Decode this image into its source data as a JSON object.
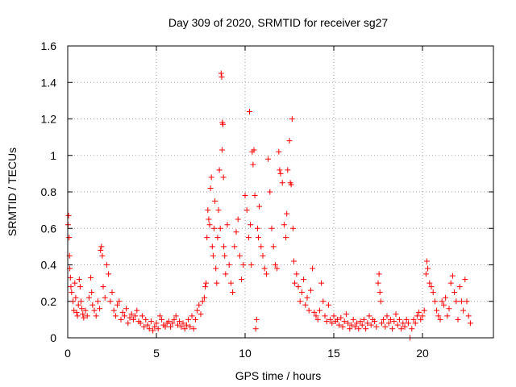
{
  "chart_data": {
    "type": "scatter",
    "title": "Day 309 of 2020, SRMTID for receiver sg27",
    "xlabel": "GPS time / hours",
    "ylabel": "SRMTID / TECUs",
    "xlim": [
      0,
      24
    ],
    "ylim": [
      0,
      1.6
    ],
    "xticks": [
      0,
      5,
      10,
      15,
      20
    ],
    "xtick_labels": [
      "0",
      "5",
      "10",
      "15",
      "20"
    ],
    "yticks": [
      0,
      0.2,
      0.4,
      0.6,
      0.8,
      1.0,
      1.2,
      1.4,
      1.6
    ],
    "ytick_labels": [
      "0",
      "0.2",
      "0.4",
      "0.6",
      "0.8",
      "1",
      "1.2",
      "1.4",
      "1.6"
    ],
    "grid": true,
    "marker": "+",
    "color": "#ff0000",
    "series": [
      {
        "name": "SRMTID",
        "points": [
          [
            0.02,
            0.62
          ],
          [
            0.05,
            0.67
          ],
          [
            0.08,
            0.55
          ],
          [
            0.1,
            0.45
          ],
          [
            0.12,
            0.38
          ],
          [
            0.15,
            0.33
          ],
          [
            0.18,
            0.28
          ],
          [
            0.22,
            0.25
          ],
          [
            0.3,
            0.2
          ],
          [
            0.35,
            0.15
          ],
          [
            0.4,
            0.3
          ],
          [
            0.45,
            0.22
          ],
          [
            0.5,
            0.14
          ],
          [
            0.55,
            0.12
          ],
          [
            0.6,
            0.18
          ],
          [
            0.65,
            0.32
          ],
          [
            0.7,
            0.28
          ],
          [
            0.75,
            0.2
          ],
          [
            0.8,
            0.16
          ],
          [
            0.85,
            0.13
          ],
          [
            0.9,
            0.11
          ],
          [
            1.0,
            0.15
          ],
          [
            1.1,
            0.12
          ],
          [
            1.2,
            0.22
          ],
          [
            1.3,
            0.33
          ],
          [
            1.35,
            0.25
          ],
          [
            1.4,
            0.18
          ],
          [
            1.5,
            0.15
          ],
          [
            1.6,
            0.12
          ],
          [
            1.7,
            0.2
          ],
          [
            1.8,
            0.16
          ],
          [
            1.85,
            0.48
          ],
          [
            1.9,
            0.5
          ],
          [
            1.95,
            0.45
          ],
          [
            2.0,
            0.28
          ],
          [
            2.1,
            0.22
          ],
          [
            2.2,
            0.4
          ],
          [
            2.3,
            0.35
          ],
          [
            2.4,
            0.2
          ],
          [
            2.5,
            0.25
          ],
          [
            2.6,
            0.15
          ],
          [
            2.7,
            0.12
          ],
          [
            2.8,
            0.18
          ],
          [
            2.9,
            0.2
          ],
          [
            3.0,
            0.1
          ],
          [
            3.1,
            0.14
          ],
          [
            3.2,
            0.12
          ],
          [
            3.3,
            0.16
          ],
          [
            3.4,
            0.08
          ],
          [
            3.5,
            0.11
          ],
          [
            3.6,
            0.13
          ],
          [
            3.7,
            0.1
          ],
          [
            3.8,
            0.12
          ],
          [
            3.9,
            0.15
          ],
          [
            4.0,
            0.09
          ],
          [
            4.1,
            0.08
          ],
          [
            4.2,
            0.12
          ],
          [
            4.3,
            0.06
          ],
          [
            4.4,
            0.1
          ],
          [
            4.5,
            0.07
          ],
          [
            4.6,
            0.05
          ],
          [
            4.7,
            0.09
          ],
          [
            4.8,
            0.04
          ],
          [
            4.9,
            0.06
          ],
          [
            5.0,
            0.08
          ],
          [
            5.1,
            0.05
          ],
          [
            5.2,
            0.12
          ],
          [
            5.3,
            0.1
          ],
          [
            5.4,
            0.07
          ],
          [
            5.5,
            0.06
          ],
          [
            5.6,
            0.08
          ],
          [
            5.7,
            0.09
          ],
          [
            5.8,
            0.06
          ],
          [
            5.9,
            0.08
          ],
          [
            6.0,
            0.1
          ],
          [
            6.1,
            0.12
          ],
          [
            6.2,
            0.07
          ],
          [
            6.3,
            0.09
          ],
          [
            6.4,
            0.06
          ],
          [
            6.5,
            0.08
          ],
          [
            6.6,
            0.05
          ],
          [
            6.7,
            0.07
          ],
          [
            6.8,
            0.1
          ],
          [
            6.9,
            0.06
          ],
          [
            7.0,
            0.12
          ],
          [
            7.1,
            0.05
          ],
          [
            7.2,
            0.1
          ],
          [
            7.3,
            0.15
          ],
          [
            7.4,
            0.18
          ],
          [
            7.5,
            0.13
          ],
          [
            7.6,
            0.2
          ],
          [
            7.7,
            0.22
          ],
          [
            7.75,
            0.28
          ],
          [
            7.8,
            0.3
          ],
          [
            7.85,
            0.55
          ],
          [
            7.9,
            0.7
          ],
          [
            7.95,
            0.65
          ],
          [
            8.0,
            0.62
          ],
          [
            8.05,
            0.82
          ],
          [
            8.1,
            0.88
          ],
          [
            8.15,
            0.5
          ],
          [
            8.2,
            0.45
          ],
          [
            8.25,
            0.6
          ],
          [
            8.3,
            0.75
          ],
          [
            8.35,
            0.38
          ],
          [
            8.4,
            0.3
          ],
          [
            8.45,
            0.55
          ],
          [
            8.5,
            0.7
          ],
          [
            8.55,
            0.92
          ],
          [
            8.6,
            0.6
          ],
          [
            8.65,
            1.45
          ],
          [
            8.68,
            1.43
          ],
          [
            8.7,
            1.03
          ],
          [
            8.72,
            1.18
          ],
          [
            8.75,
            1.17
          ],
          [
            8.78,
            0.88
          ],
          [
            8.8,
            0.5
          ],
          [
            8.85,
            0.45
          ],
          [
            8.9,
            0.35
          ],
          [
            9.0,
            0.62
          ],
          [
            9.1,
            0.4
          ],
          [
            9.2,
            0.3
          ],
          [
            9.3,
            0.25
          ],
          [
            9.4,
            0.5
          ],
          [
            9.5,
            0.58
          ],
          [
            9.6,
            0.65
          ],
          [
            9.7,
            0.45
          ],
          [
            9.8,
            0.32
          ],
          [
            9.9,
            0.4
          ],
          [
            10.0,
            0.78
          ],
          [
            10.1,
            0.7
          ],
          [
            10.2,
            0.55
          ],
          [
            10.25,
            1.24
          ],
          [
            10.3,
            0.62
          ],
          [
            10.35,
            0.4
          ],
          [
            10.4,
            1.02
          ],
          [
            10.45,
            0.95
          ],
          [
            10.5,
            1.03
          ],
          [
            10.55,
            0.78
          ],
          [
            10.6,
            0.05
          ],
          [
            10.65,
            0.1
          ],
          [
            10.7,
            0.6
          ],
          [
            10.75,
            0.55
          ],
          [
            10.8,
            0.72
          ],
          [
            10.9,
            0.5
          ],
          [
            11.0,
            0.45
          ],
          [
            11.1,
            0.38
          ],
          [
            11.2,
            0.35
          ],
          [
            11.3,
            0.98
          ],
          [
            11.4,
            0.8
          ],
          [
            11.5,
            0.6
          ],
          [
            11.6,
            0.5
          ],
          [
            11.7,
            0.4
          ],
          [
            11.8,
            0.38
          ],
          [
            11.9,
            1.02
          ],
          [
            11.95,
            0.92
          ],
          [
            12.0,
            0.9
          ],
          [
            12.1,
            0.85
          ],
          [
            12.2,
            0.62
          ],
          [
            12.3,
            0.55
          ],
          [
            12.35,
            0.68
          ],
          [
            12.4,
            0.92
          ],
          [
            12.5,
            1.08
          ],
          [
            12.55,
            0.85
          ],
          [
            12.6,
            0.84
          ],
          [
            12.65,
            1.2
          ],
          [
            12.7,
            0.6
          ],
          [
            12.75,
            0.42
          ],
          [
            12.8,
            0.3
          ],
          [
            12.9,
            0.35
          ],
          [
            13.0,
            0.28
          ],
          [
            13.1,
            0.2
          ],
          [
            13.2,
            0.25
          ],
          [
            13.3,
            0.32
          ],
          [
            13.4,
            0.18
          ],
          [
            13.5,
            0.22
          ],
          [
            13.6,
            0.15
          ],
          [
            13.7,
            0.26
          ],
          [
            13.8,
            0.38
          ],
          [
            13.9,
            0.14
          ],
          [
            14.0,
            0.12
          ],
          [
            14.1,
            0.1
          ],
          [
            14.2,
            0.15
          ],
          [
            14.3,
            0.3
          ],
          [
            14.4,
            0.2
          ],
          [
            14.5,
            0.12
          ],
          [
            14.6,
            0.09
          ],
          [
            14.7,
            0.18
          ],
          [
            14.8,
            0.1
          ],
          [
            14.9,
            0.08
          ],
          [
            15.0,
            0.12
          ],
          [
            15.1,
            0.09
          ],
          [
            15.2,
            0.1
          ],
          [
            15.3,
            0.07
          ],
          [
            15.4,
            0.11
          ],
          [
            15.5,
            0.06
          ],
          [
            15.6,
            0.09
          ],
          [
            15.7,
            0.13
          ],
          [
            15.8,
            0.08
          ],
          [
            15.9,
            0.05
          ],
          [
            16.0,
            0.07
          ],
          [
            16.1,
            0.1
          ],
          [
            16.2,
            0.06
          ],
          [
            16.3,
            0.08
          ],
          [
            16.4,
            0.05
          ],
          [
            16.5,
            0.09
          ],
          [
            16.6,
            0.07
          ],
          [
            16.7,
            0.1
          ],
          [
            16.8,
            0.05
          ],
          [
            16.9,
            0.08
          ],
          [
            17.0,
            0.12
          ],
          [
            17.1,
            0.07
          ],
          [
            17.2,
            0.1
          ],
          [
            17.3,
            0.09
          ],
          [
            17.4,
            0.06
          ],
          [
            17.5,
            0.3
          ],
          [
            17.55,
            0.35
          ],
          [
            17.6,
            0.25
          ],
          [
            17.65,
            0.2
          ],
          [
            17.7,
            0.08
          ],
          [
            17.8,
            0.1
          ],
          [
            17.9,
            0.06
          ],
          [
            18.0,
            0.12
          ],
          [
            18.1,
            0.08
          ],
          [
            18.2,
            0.1
          ],
          [
            18.3,
            0.05
          ],
          [
            18.4,
            0.09
          ],
          [
            18.5,
            0.13
          ],
          [
            18.6,
            0.07
          ],
          [
            18.7,
            0.1
          ],
          [
            18.8,
            0.05
          ],
          [
            18.9,
            0.08
          ],
          [
            19.0,
            0.06
          ],
          [
            19.1,
            0.1
          ],
          [
            19.2,
            0.08
          ],
          [
            19.3,
            0.0
          ],
          [
            19.4,
            0.05
          ],
          [
            19.5,
            0.1
          ],
          [
            19.6,
            0.08
          ],
          [
            19.7,
            0.12
          ],
          [
            19.8,
            0.14
          ],
          [
            19.9,
            0.1
          ],
          [
            20.0,
            0.12
          ],
          [
            20.1,
            0.15
          ],
          [
            20.2,
            0.35
          ],
          [
            20.25,
            0.42
          ],
          [
            20.3,
            0.38
          ],
          [
            20.4,
            0.3
          ],
          [
            20.5,
            0.28
          ],
          [
            20.6,
            0.25
          ],
          [
            20.7,
            0.2
          ],
          [
            20.8,
            0.15
          ],
          [
            20.9,
            0.12
          ],
          [
            21.0,
            0.1
          ],
          [
            21.1,
            0.2
          ],
          [
            21.2,
            0.18
          ],
          [
            21.3,
            0.22
          ],
          [
            21.4,
            0.12
          ],
          [
            21.5,
            0.16
          ],
          [
            21.6,
            0.3
          ],
          [
            21.7,
            0.34
          ],
          [
            21.8,
            0.25
          ],
          [
            21.9,
            0.2
          ],
          [
            22.0,
            0.1
          ],
          [
            22.1,
            0.28
          ],
          [
            22.2,
            0.2
          ],
          [
            22.3,
            0.15
          ],
          [
            22.4,
            0.32
          ],
          [
            22.5,
            0.2
          ],
          [
            22.6,
            0.12
          ],
          [
            22.7,
            0.08
          ]
        ]
      }
    ]
  }
}
